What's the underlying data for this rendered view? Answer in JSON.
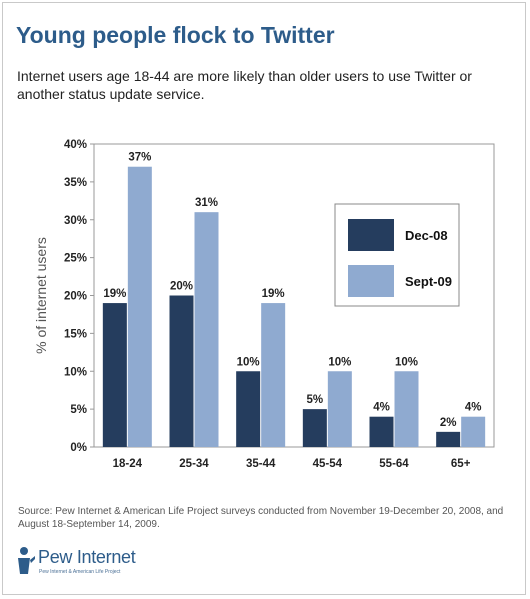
{
  "header": {
    "title": "Young people flock to Twitter",
    "subtitle": "Internet users age 18-44 are more likely than older users to use Twitter or another status update service."
  },
  "footer": {
    "source": "Source: Pew Internet & American Life Project surveys conducted from November 19-December 20, 2008, and August 18-September 14, 2009.",
    "logo_text": "Pew Internet",
    "logo_tagline": "Pew Internet & American Life Project"
  },
  "colors": {
    "dec08": "#253d5e",
    "sept09": "#8faad0",
    "title": "#2d5c8a",
    "gridline": "#aaaaaa"
  },
  "chart_data": {
    "type": "bar",
    "title": "",
    "xlabel": "",
    "ylabel": "% of internet users",
    "ylim": [
      0,
      40
    ],
    "y_ticks": [
      0,
      5,
      10,
      15,
      20,
      25,
      30,
      35,
      40
    ],
    "y_tick_labels": [
      "0%",
      "5%",
      "10%",
      "15%",
      "20%",
      "25%",
      "30%",
      "35%",
      "40%"
    ],
    "grid": false,
    "legend_position": "right",
    "categories": [
      "18-24",
      "25-34",
      "35-44",
      "45-54",
      "55-64",
      "65+"
    ],
    "series": [
      {
        "name": "Dec-08",
        "values": [
          19,
          20,
          10,
          5,
          4,
          2
        ],
        "labels": [
          "19%",
          "20%",
          "10%",
          "5%",
          "4%",
          "2%"
        ],
        "color": "#253d5e"
      },
      {
        "name": "Sept-09",
        "values": [
          37,
          31,
          19,
          10,
          10,
          4
        ],
        "labels": [
          "37%",
          "31%",
          "19%",
          "10%",
          "10%",
          "4%"
        ],
        "color": "#8faad0"
      }
    ]
  }
}
